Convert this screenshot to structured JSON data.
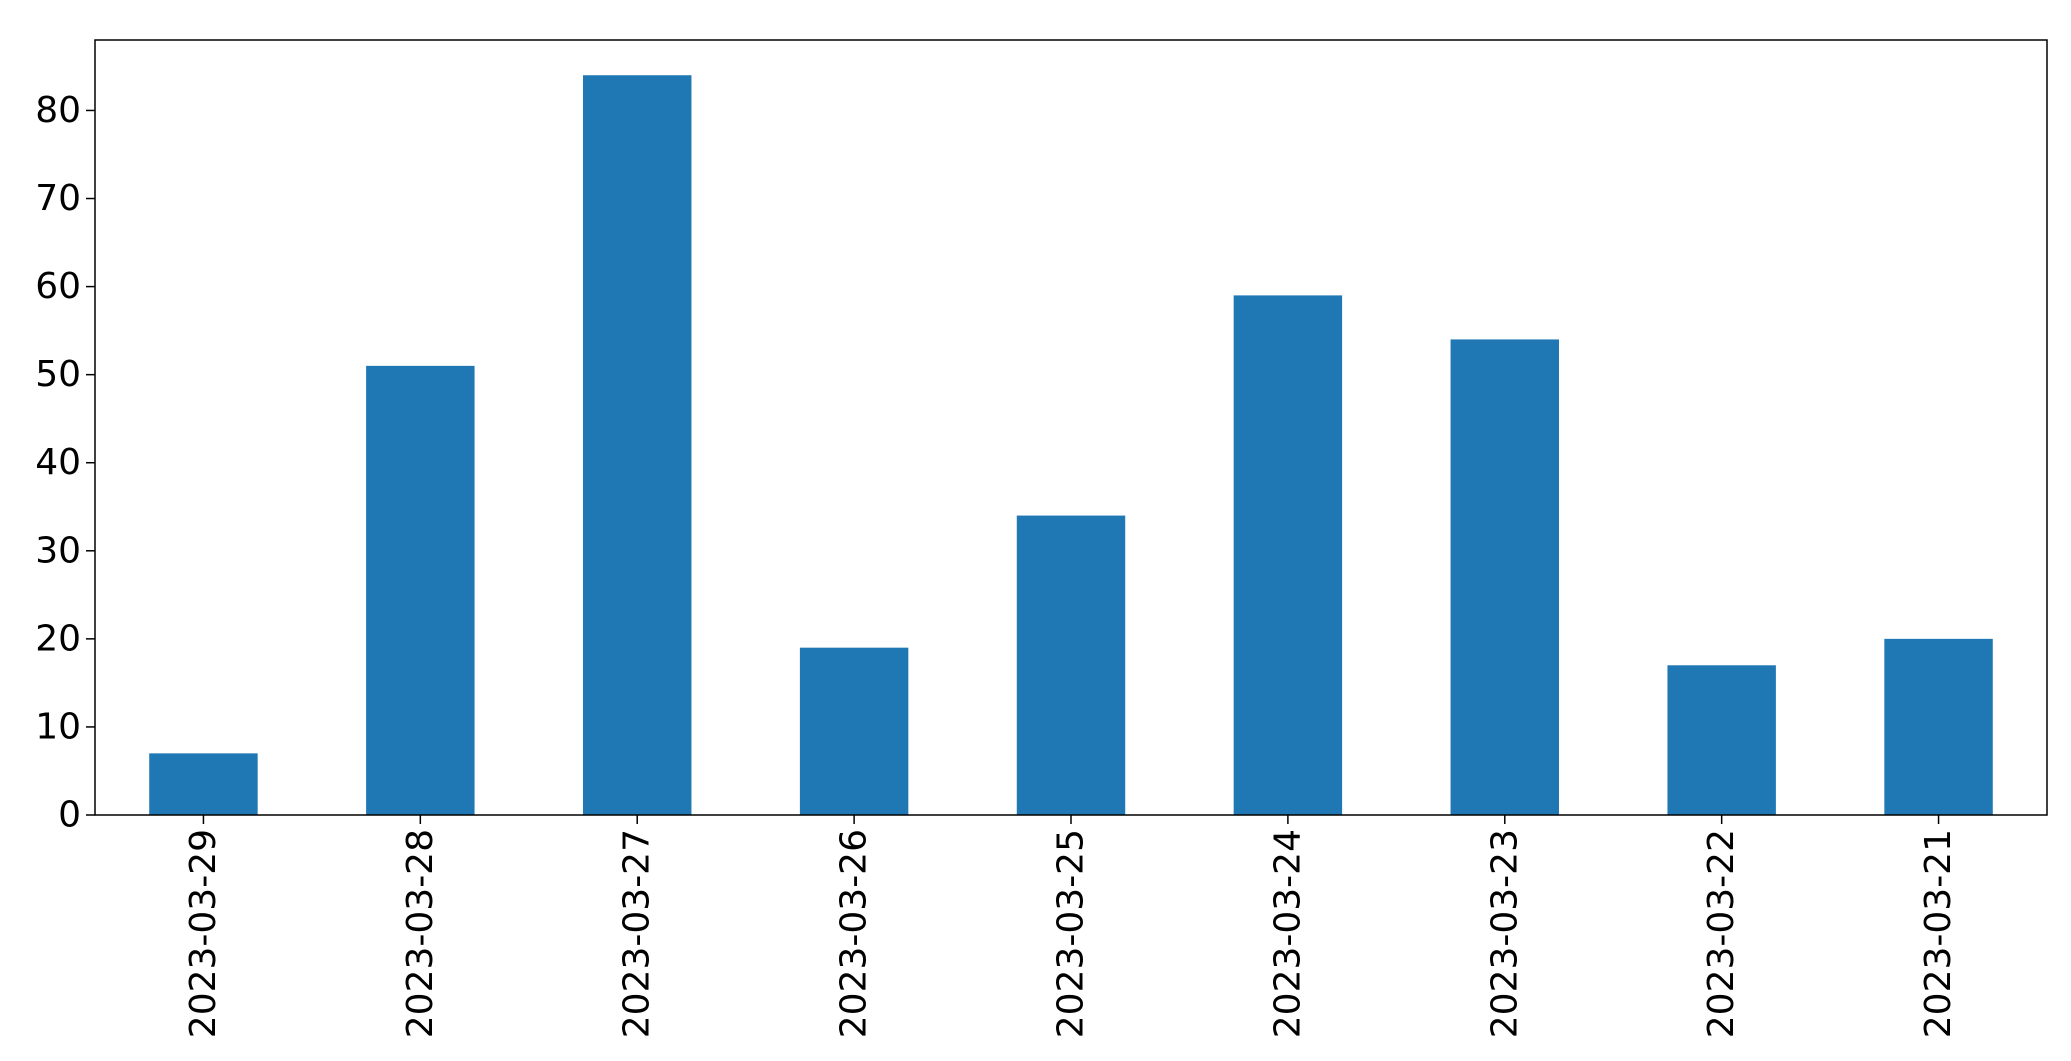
{
  "chart_data": {
    "type": "bar",
    "categories": [
      "2023-03-29",
      "2023-03-28",
      "2023-03-27",
      "2023-03-26",
      "2023-03-25",
      "2023-03-24",
      "2023-03-23",
      "2023-03-22",
      "2023-03-21"
    ],
    "values": [
      7,
      51,
      84,
      19,
      34,
      59,
      54,
      17,
      20
    ],
    "title": "",
    "xlabel": "",
    "ylabel": "",
    "ylim": [
      0,
      88
    ],
    "yticks": [
      0,
      10,
      20,
      30,
      40,
      50,
      60,
      70,
      80
    ],
    "xtick_rotation": "vertical",
    "grid": false,
    "legend": "none",
    "bar_color": "#1f77b4"
  }
}
